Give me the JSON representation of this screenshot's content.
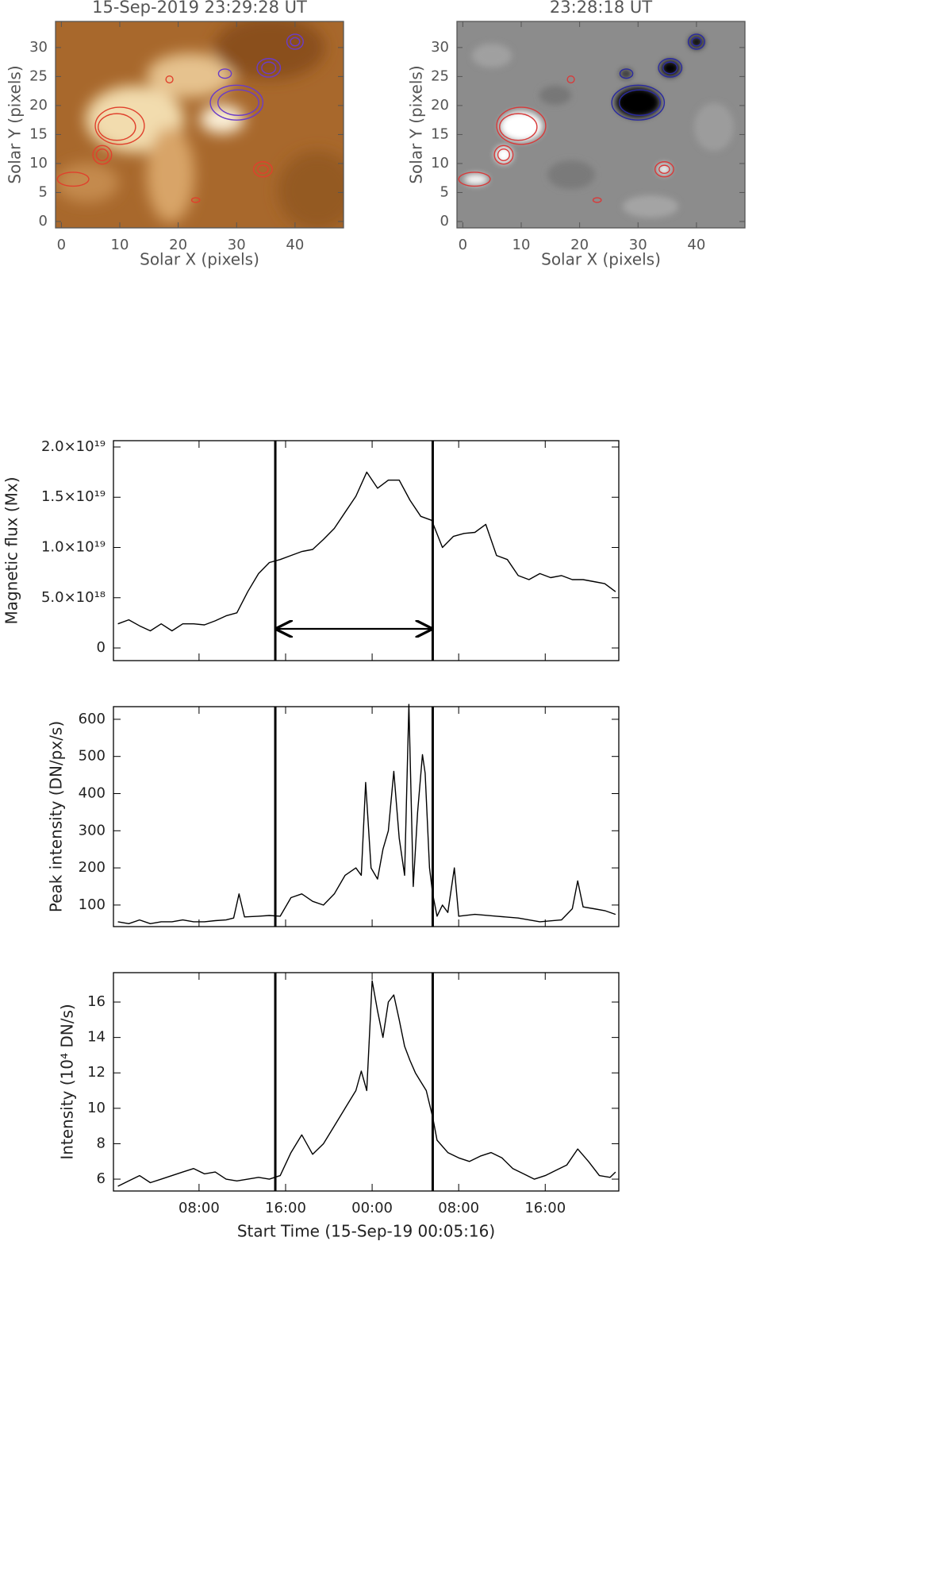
{
  "chart_data": [
    {
      "type": "image",
      "title": "15-Sep-2019 23:29:28 UT",
      "xlabel": "Solar X (pixels)",
      "ylabel": "Solar Y (pixels)",
      "xlim": [
        -1,
        48.3
      ],
      "ylim": [
        -1.1,
        34.5
      ],
      "xticks": [
        0,
        10,
        20,
        30,
        40
      ],
      "yticks": [
        0,
        5,
        10,
        15,
        20,
        25,
        30
      ],
      "contours": [
        {
          "color": "#e0402c",
          "shapes": [
            {
              "x": 10,
              "y": 16.5,
              "rx": 4.2,
              "ry": 3.2
            },
            {
              "x": 9.5,
              "y": 16.3,
              "rx": 3.2,
              "ry": 2.3
            },
            {
              "x": 7,
              "y": 11.5,
              "rx": 1.6,
              "ry": 1.6
            },
            {
              "x": 7,
              "y": 11.5,
              "rx": 1,
              "ry": 1
            },
            {
              "x": 2,
              "y": 7.3,
              "rx": 2.7,
              "ry": 1.2
            },
            {
              "x": 34.5,
              "y": 9,
              "rx": 1.6,
              "ry": 1.3
            },
            {
              "x": 34.5,
              "y": 9,
              "rx": 0.9,
              "ry": 0.7
            },
            {
              "x": 18.5,
              "y": 24.5,
              "rx": 0.6,
              "ry": 0.6
            },
            {
              "x": 23,
              "y": 3.7,
              "rx": 0.7,
              "ry": 0.4
            }
          ]
        },
        {
          "color": "#6a3cc8",
          "shapes": [
            {
              "x": 30,
              "y": 20.5,
              "rx": 4.5,
              "ry": 3
            },
            {
              "x": 30.3,
              "y": 20.5,
              "rx": 3.5,
              "ry": 2.2
            },
            {
              "x": 35.5,
              "y": 26.5,
              "rx": 2,
              "ry": 1.6
            },
            {
              "x": 35.5,
              "y": 26.5,
              "rx": 1.2,
              "ry": 1
            },
            {
              "x": 40,
              "y": 31,
              "rx": 1.4,
              "ry": 1.3
            },
            {
              "x": 40,
              "y": 31,
              "rx": 0.8,
              "ry": 0.7
            },
            {
              "x": 28,
              "y": 25.5,
              "rx": 1.1,
              "ry": 0.8
            }
          ]
        }
      ]
    },
    {
      "type": "image",
      "title": "23:28:18 UT",
      "xlabel": "Solar X (pixels)",
      "ylabel": "Solar Y (pixels)",
      "xlim": [
        -1,
        48.3
      ],
      "ylim": [
        -1.1,
        34.5
      ],
      "xticks": [
        0,
        10,
        20,
        30,
        40
      ],
      "yticks": [
        0,
        5,
        10,
        15,
        20,
        25,
        30
      ],
      "contours": [
        {
          "color": "#d83a3a",
          "shapes": [
            {
              "x": 10,
              "y": 16.5,
              "rx": 4.2,
              "ry": 3.2
            },
            {
              "x": 9.5,
              "y": 16.3,
              "rx": 3.2,
              "ry": 2.3
            },
            {
              "x": 7,
              "y": 11.5,
              "rx": 1.6,
              "ry": 1.6
            },
            {
              "x": 7,
              "y": 11.5,
              "rx": 1,
              "ry": 1
            },
            {
              "x": 2,
              "y": 7.3,
              "rx": 2.7,
              "ry": 1.2
            },
            {
              "x": 34.5,
              "y": 9,
              "rx": 1.6,
              "ry": 1.3
            },
            {
              "x": 34.5,
              "y": 9,
              "rx": 0.9,
              "ry": 0.7
            },
            {
              "x": 18.5,
              "y": 24.5,
              "rx": 0.6,
              "ry": 0.6
            },
            {
              "x": 23,
              "y": 3.7,
              "rx": 0.7,
              "ry": 0.4
            }
          ]
        },
        {
          "color": "#2a2aa0",
          "shapes": [
            {
              "x": 30,
              "y": 20.5,
              "rx": 4.5,
              "ry": 3
            },
            {
              "x": 30.3,
              "y": 20.5,
              "rx": 3.5,
              "ry": 2.2
            },
            {
              "x": 35.5,
              "y": 26.5,
              "rx": 2,
              "ry": 1.6
            },
            {
              "x": 35.5,
              "y": 26.5,
              "rx": 1.2,
              "ry": 1
            },
            {
              "x": 40,
              "y": 31,
              "rx": 1.4,
              "ry": 1.3
            },
            {
              "x": 40,
              "y": 31,
              "rx": 0.8,
              "ry": 0.7
            },
            {
              "x": 28,
              "y": 25.5,
              "rx": 1.1,
              "ry": 0.8
            }
          ]
        }
      ]
    },
    {
      "type": "line",
      "ylabel": "Magnetic flux (Mx)",
      "color": "#000000",
      "xlim": [
        0.088,
        46.8
      ],
      "xticks": [
        8,
        16,
        24,
        32,
        40
      ],
      "ylim": [
        -1.26e+18,
        2.063e+19
      ],
      "yticks": [
        0,
        {
          "value": 5e+18,
          "label": "5.0×10¹⁸"
        },
        {
          "value": 1e+19,
          "label": "1.0×10¹⁹"
        },
        {
          "value": 1.5e+19,
          "label": "1.5×10¹⁹"
        },
        {
          "value": 2e+19,
          "label": "2.0×10¹⁹"
        }
      ],
      "markers": [
        15.05,
        29.6
      ],
      "arrow": {
        "x": [
          15.05,
          29.6
        ],
        "y": 1.9e+18
      },
      "x": [
        0.5,
        1.5,
        2.5,
        3.5,
        4.5,
        5.5,
        6.5,
        7.5,
        8.5,
        9.5,
        10.5,
        11.5,
        12.5,
        13.5,
        14.5,
        15.5,
        16.5,
        17.5,
        18.5,
        19.5,
        20.5,
        21.5,
        22.5,
        23.5,
        24.5,
        25.5,
        26.5,
        27.5,
        28.5,
        29.5,
        30.5,
        31.5,
        32.5,
        33.5,
        34.5,
        35.5,
        36.5,
        37.5,
        38.5,
        39.5,
        40.5,
        41.5,
        42.5,
        43.5,
        44.5,
        45.5,
        46.5
      ],
      "values": [
        2.4e+18,
        2.8e+18,
        2.2e+18,
        1.7e+18,
        2.4e+18,
        1.7e+18,
        2.4e+18,
        2.4e+18,
        2.3e+18,
        2.7e+18,
        3.2e+18,
        3.5e+18,
        5.6e+18,
        7.4e+18,
        8.5e+18,
        8.8e+18,
        9.2e+18,
        9.6e+18,
        9.8e+18,
        1.08e+19,
        1.19e+19,
        1.35e+19,
        1.51e+19,
        1.75e+19,
        1.59e+19,
        1.67e+19,
        1.67e+19,
        1.47e+19,
        1.31e+19,
        1.27e+19,
        1e+19,
        1.11e+19,
        1.14e+19,
        1.15e+19,
        1.23e+19,
        9.2e+18,
        8.8e+18,
        7.2e+18,
        6.8e+18,
        7.4e+18,
        7e+18,
        7.2e+18,
        6.8e+18,
        6.8e+18,
        6.6e+18,
        6.4e+18,
        5.6e+18
      ]
    },
    {
      "type": "line",
      "ylabel": "Peak intensity (DN/px/s)",
      "color": "#000000",
      "xlim": [
        0.088,
        46.8
      ],
      "xticks": [
        8,
        16,
        24,
        32,
        40
      ],
      "ylim": [
        42,
        634
      ],
      "yticks": [
        100,
        200,
        300,
        400,
        500,
        600
      ],
      "markers": [
        15.05,
        29.6
      ],
      "x": [
        0.5,
        1.5,
        2.5,
        3.5,
        4.5,
        5.5,
        6.5,
        7.5,
        8.5,
        9.5,
        10.5,
        11.2,
        11.7,
        12.2,
        13.5,
        14.5,
        15.5,
        16.5,
        17.5,
        18.5,
        19.5,
        20.5,
        21.5,
        22.5,
        23.0,
        23.4,
        23.9,
        24.5,
        25.0,
        25.5,
        26.0,
        26.5,
        27.0,
        27.4,
        27.8,
        28.2,
        28.65,
        28.9,
        29.3,
        29.6,
        30.0,
        30.5,
        31.0,
        31.6,
        32.0,
        33.5,
        35.5,
        37.5,
        39.5,
        41.5,
        42.5,
        43.0,
        43.5,
        44.5,
        45.5,
        46.5
      ],
      "values": [
        55,
        50,
        60,
        50,
        55,
        55,
        60,
        55,
        55,
        58,
        60,
        65,
        130,
        68,
        70,
        72,
        70,
        120,
        130,
        110,
        100,
        130,
        180,
        200,
        180,
        430,
        200,
        170,
        250,
        300,
        460,
        280,
        180,
        640,
        150,
        350,
        505,
        455,
        200,
        130,
        70,
        100,
        80,
        200,
        70,
        75,
        70,
        65,
        55,
        60,
        90,
        165,
        95,
        90,
        85,
        75
      ]
    },
    {
      "type": "line",
      "ylabel": "Intensity (10⁴ DN/s)",
      "xlabel": "Start Time (15-Sep-19 00:05:16)",
      "color": "#000000",
      "xlim": [
        0.088,
        46.8
      ],
      "xticks": [
        {
          "value": 8,
          "label": "08:00"
        },
        {
          "value": 16,
          "label": "16:00"
        },
        {
          "value": 24,
          "label": "00:00"
        },
        {
          "value": 32,
          "label": "08:00"
        },
        {
          "value": 40,
          "label": "16:00"
        }
      ],
      "ylim": [
        5.33,
        17.66
      ],
      "yticks": [
        6,
        8,
        10,
        12,
        14,
        16
      ],
      "markers": [
        15.05,
        29.6
      ],
      "x": [
        0.5,
        1.5,
        2.5,
        3.5,
        4.5,
        5.5,
        6.5,
        7.5,
        8.5,
        9.5,
        10.5,
        11.5,
        12.5,
        13.5,
        14.5,
        15.5,
        16.5,
        17.5,
        18.5,
        19.5,
        20.5,
        21.5,
        22.5,
        23.0,
        23.5,
        24.0,
        24.5,
        25.0,
        25.5,
        26.0,
        26.5,
        27.0,
        27.5,
        28.0,
        28.5,
        29.0,
        29.6,
        30.0,
        31.0,
        32.0,
        33.0,
        34.0,
        35.0,
        36.0,
        37.0,
        38.0,
        39.0,
        40.0,
        41.0,
        42.0,
        43.0,
        44.0,
        45.0,
        46.0,
        46.5
      ],
      "values": [
        5.6,
        5.9,
        6.2,
        5.8,
        6.0,
        6.2,
        6.4,
        6.6,
        6.3,
        6.4,
        6.0,
        5.9,
        6.0,
        6.1,
        6.0,
        6.2,
        7.5,
        8.5,
        7.4,
        8.0,
        9.0,
        10.0,
        11.0,
        12.1,
        11.0,
        17.2,
        15.5,
        14.0,
        16.0,
        16.4,
        15.0,
        13.5,
        12.7,
        12.0,
        11.5,
        11.0,
        9.5,
        8.2,
        7.5,
        7.2,
        7.0,
        7.3,
        7.5,
        7.2,
        6.6,
        6.3,
        6.0,
        6.2,
        6.5,
        6.8,
        7.7,
        7.0,
        6.2,
        6.1,
        6.4
      ]
    }
  ]
}
